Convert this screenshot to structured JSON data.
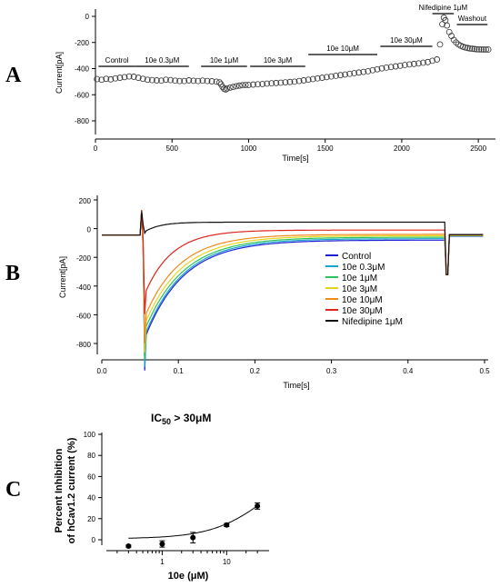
{
  "chart_data": [
    {
      "panel": "A",
      "type": "scatter",
      "marker": "open-circle",
      "xlabel": "Time[s]",
      "ylabel": "Current[pA]",
      "xlim": [
        0,
        2600
      ],
      "ylim": [
        -1000,
        50
      ],
      "xticks": [
        "0",
        "500",
        "1000",
        "1500",
        "2000",
        "2500"
      ],
      "yticks": [
        "0",
        "-200",
        "-400",
        "-600",
        "-800"
      ],
      "conditions": [
        {
          "label": "Control",
          "start": 20,
          "end": 260
        },
        {
          "label": "10e 0.3μM",
          "start": 260,
          "end": 610
        },
        {
          "label": "10e 1μM",
          "start": 690,
          "end": 990
        },
        {
          "label": "10e 3μM",
          "start": 1010,
          "end": 1370
        },
        {
          "label": "10e 10μM",
          "start": 1390,
          "end": 1840
        },
        {
          "label": "10e 30μM",
          "start": 1860,
          "end": 2200
        },
        {
          "label": "Nifedipine 1μM",
          "start": 2200,
          "end": 2340
        },
        {
          "label": "Washout",
          "start": 2360,
          "end": 2560
        }
      ],
      "x": [
        10,
        40,
        70,
        100,
        130,
        160,
        190,
        220,
        250,
        280,
        310,
        340,
        370,
        400,
        430,
        460,
        490,
        520,
        550,
        580,
        610,
        640,
        670,
        700,
        730,
        760,
        790,
        810,
        820,
        830,
        840,
        850,
        860,
        880,
        900,
        920,
        940,
        960,
        980,
        1000,
        1030,
        1060,
        1090,
        1120,
        1150,
        1180,
        1210,
        1240,
        1270,
        1300,
        1330,
        1360,
        1390,
        1420,
        1450,
        1480,
        1510,
        1540,
        1570,
        1600,
        1630,
        1660,
        1690,
        1720,
        1750,
        1780,
        1810,
        1840,
        1870,
        1900,
        1930,
        1960,
        1990,
        2020,
        2050,
        2080,
        2110,
        2140,
        2170,
        2200,
        2230,
        2250,
        2265,
        2275,
        2285,
        2295,
        2310,
        2325,
        2340,
        2355,
        2370,
        2385,
        2400,
        2415,
        2430,
        2445,
        2460,
        2475,
        2490,
        2505,
        2520,
        2535,
        2550,
        2565
      ],
      "y": [
        -480,
        -485,
        -478,
        -482,
        -475,
        -470,
        -465,
        -460,
        -462,
        -470,
        -478,
        -485,
        -488,
        -490,
        -492,
        -485,
        -488,
        -492,
        -495,
        -495,
        -490,
        -493,
        -495,
        -492,
        -495,
        -497,
        -500,
        -505,
        -520,
        -540,
        -555,
        -560,
        -552,
        -545,
        -540,
        -535,
        -530,
        -527,
        -525,
        -525,
        -522,
        -520,
        -518,
        -515,
        -512,
        -510,
        -508,
        -505,
        -502,
        -500,
        -495,
        -490,
        -485,
        -480,
        -475,
        -470,
        -465,
        -460,
        -455,
        -450,
        -445,
        -440,
        -435,
        -430,
        -425,
        -420,
        -412,
        -405,
        -398,
        -392,
        -388,
        -383,
        -378,
        -372,
        -368,
        -364,
        -360,
        -355,
        -350,
        -340,
        -330,
        -215,
        -60,
        -10,
        -30,
        -70,
        -120,
        -150,
        -180,
        -200,
        -215,
        -225,
        -232,
        -238,
        -242,
        -246,
        -248,
        -250,
        -252,
        -253,
        -253,
        -254,
        -254,
        -254
      ]
    },
    {
      "panel": "B",
      "type": "line",
      "xlabel": "Time[s]",
      "ylabel": "Current[pA]",
      "xlim": [
        -0.005,
        0.505
      ],
      "ylim": [
        -900,
        220
      ],
      "xticks": [
        "0.0",
        "0.1",
        "0.2",
        "0.3",
        "0.4",
        "0.5"
      ],
      "yticks": [
        "200",
        "0",
        "-200",
        "-400",
        "-600",
        "-800"
      ],
      "legend_position": "right",
      "series": [
        {
          "name": "Control",
          "color": "#1f1fd6",
          "peak": -780,
          "tau": 0.05,
          "end": -80
        },
        {
          "name": "10e 0.3μM",
          "color": "#19a3cf",
          "peak": -760,
          "tau": 0.05,
          "end": -70
        },
        {
          "name": "10e 1μM",
          "color": "#2cc45a",
          "peak": -720,
          "tau": 0.05,
          "end": -60
        },
        {
          "name": "10e 3μM",
          "color": "#e6d619",
          "peak": -680,
          "tau": 0.048,
          "end": -50
        },
        {
          "name": "10e 10μM",
          "color": "#f08a1a",
          "peak": -630,
          "tau": 0.045,
          "end": -40
        },
        {
          "name": "10e 30μM",
          "color": "#e0261c",
          "peak": -470,
          "tau": 0.035,
          "end": -10
        },
        {
          "name": "Nifedipine 1μM",
          "color": "#111111",
          "peak": -25,
          "tau": 0.02,
          "end": 45
        }
      ]
    },
    {
      "panel": "C",
      "type": "scatter",
      "title": "IC50 > 30μM",
      "xlabel": "10e (μM)",
      "ylabel": "Percent Inhibition of hCav1.2 current (%)",
      "x_scale": "log",
      "xlim": [
        0.15,
        40
      ],
      "ylim": [
        -10,
        100
      ],
      "xticks": [
        "1",
        "10"
      ],
      "yticks": [
        "0",
        "20",
        "40",
        "60",
        "80",
        "100"
      ],
      "points": [
        {
          "x": 0.3,
          "y": -6,
          "err": 1
        },
        {
          "x": 1,
          "y": -4,
          "err": 3
        },
        {
          "x": 3,
          "y": 2,
          "err": 5
        },
        {
          "x": 10,
          "y": 14,
          "err": 1.5
        },
        {
          "x": 30,
          "y": 32,
          "err": 3
        }
      ],
      "fit_curve": "hill"
    }
  ]
}
